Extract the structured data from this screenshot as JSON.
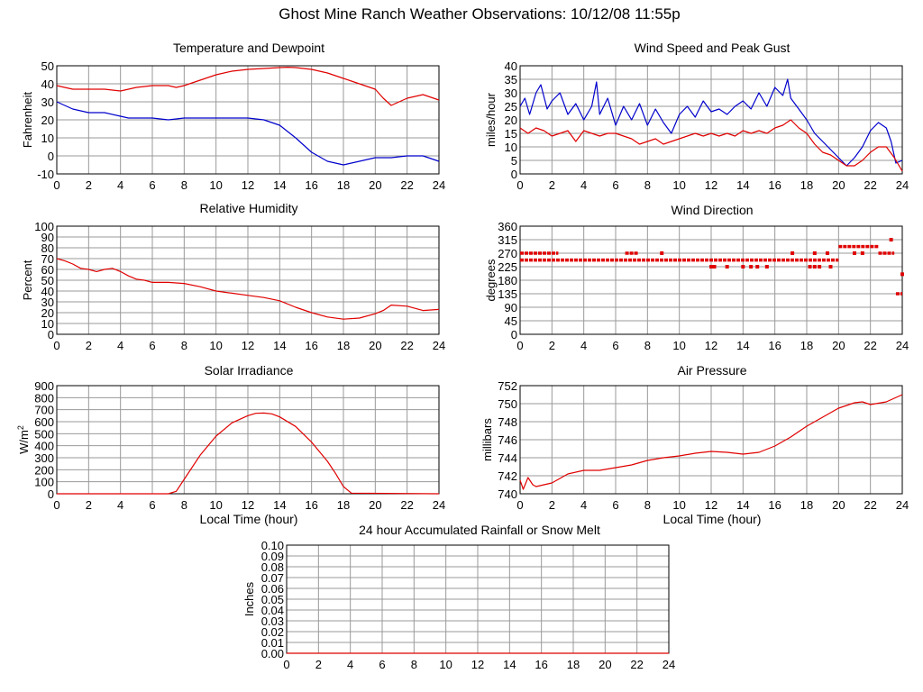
{
  "page": {
    "title": "Ghost Mine Ranch Weather Observations: 10/12/08 11:55p"
  },
  "colors": {
    "red": "#e00000",
    "blue": "#0000cc",
    "grid": "#999999",
    "axis": "#000000"
  },
  "chart_data": [
    {
      "id": "temperature",
      "type": "line",
      "title": "Temperature and Dewpoint",
      "xlabel": "",
      "ylabel": "Fahrenheit",
      "xlim": [
        0,
        24
      ],
      "ylim": [
        -10,
        50
      ],
      "xticks": [
        0,
        2,
        4,
        6,
        8,
        10,
        12,
        14,
        16,
        18,
        20,
        22,
        24
      ],
      "yticks": [
        -10,
        0,
        10,
        20,
        30,
        40,
        50
      ],
      "ytick_labels": [
        "-10",
        "0",
        "10",
        "20",
        "30",
        "40",
        "50"
      ],
      "series": [
        {
          "name": "Temperature",
          "color": "red",
          "x": [
            0,
            0.5,
            1,
            2,
            3,
            4,
            4.5,
            5,
            6,
            7,
            7.5,
            8,
            9,
            10,
            11,
            12,
            13,
            14,
            14.5,
            15,
            16,
            17,
            18,
            19,
            20,
            20.5,
            21,
            22,
            23,
            24
          ],
          "y": [
            39,
            38,
            37,
            37,
            37,
            36,
            37,
            38,
            39,
            39,
            38,
            39,
            42,
            45,
            47,
            48,
            48.5,
            49,
            49.2,
            49,
            48,
            46,
            43,
            40,
            37,
            32,
            28,
            32,
            34,
            31
          ]
        },
        {
          "name": "Dewpoint",
          "color": "blue",
          "x": [
            0,
            0.5,
            1,
            2,
            3,
            4,
            4.5,
            5,
            6,
            7,
            8,
            9,
            10,
            11,
            12,
            13,
            14,
            15,
            16,
            17,
            18,
            18.5,
            19,
            20,
            21,
            22,
            23,
            24
          ],
          "y": [
            30,
            28,
            26,
            24,
            24,
            22,
            21,
            21,
            21,
            20,
            21,
            21,
            21,
            21,
            21,
            20,
            17,
            10,
            2,
            -3,
            -5,
            -4,
            -3,
            -1,
            -1,
            0,
            0,
            -3
          ]
        }
      ]
    },
    {
      "id": "wind-speed",
      "type": "line",
      "title": "Wind Speed and Peak Gust",
      "xlabel": "",
      "ylabel": "miles/hour",
      "xlim": [
        0,
        24
      ],
      "ylim": [
        0,
        40
      ],
      "xticks": [
        0,
        2,
        4,
        6,
        8,
        10,
        12,
        14,
        16,
        18,
        20,
        22,
        24
      ],
      "yticks": [
        0,
        5,
        10,
        15,
        20,
        25,
        30,
        35,
        40
      ],
      "ytick_labels": [
        "0",
        "5",
        "10",
        "15",
        "20",
        "25",
        "30",
        "35",
        "40"
      ],
      "series": [
        {
          "name": "Peak Gust",
          "color": "blue",
          "x": [
            0,
            0.3,
            0.6,
            1,
            1.3,
            1.7,
            2,
            2.5,
            3,
            3.5,
            4,
            4.5,
            4.8,
            5,
            5.5,
            6,
            6.5,
            7,
            7.5,
            8,
            8.5,
            9,
            9.5,
            10,
            10.5,
            11,
            11.5,
            12,
            12.5,
            13,
            13.5,
            14,
            14.5,
            15,
            15.5,
            16,
            16.5,
            16.8,
            17,
            17.5,
            18,
            18.5,
            19,
            19.5,
            20,
            20.5,
            21,
            21.5,
            22,
            22.5,
            23,
            23.3,
            23.6,
            24
          ],
          "y": [
            25,
            28,
            22,
            30,
            33,
            24,
            27,
            30,
            22,
            26,
            20,
            25,
            34,
            22,
            28,
            18,
            25,
            20,
            26,
            18,
            24,
            19,
            15,
            22,
            25,
            21,
            27,
            23,
            24,
            22,
            25,
            27,
            24,
            30,
            25,
            32,
            29,
            35,
            28,
            24,
            20,
            15,
            12,
            9,
            6,
            3,
            6,
            10,
            16,
            19,
            17,
            12,
            4,
            5
          ]
        },
        {
          "name": "Wind Speed",
          "color": "red",
          "x": [
            0,
            0.5,
            1,
            1.5,
            2,
            2.5,
            3,
            3.5,
            4,
            4.5,
            5,
            5.5,
            6,
            6.5,
            7,
            7.5,
            8,
            8.5,
            9,
            9.5,
            10,
            10.5,
            11,
            11.5,
            12,
            12.5,
            13,
            13.5,
            14,
            14.5,
            15,
            15.5,
            16,
            16.5,
            17,
            17.5,
            18,
            18.5,
            19,
            19.5,
            20,
            20.5,
            21,
            21.5,
            22,
            22.5,
            23,
            23.5,
            24
          ],
          "y": [
            17,
            15,
            17,
            16,
            14,
            15,
            16,
            12,
            16,
            15,
            14,
            15,
            15,
            14,
            13,
            11,
            12,
            13,
            11,
            12,
            13,
            14,
            15,
            14,
            15,
            14,
            15,
            14,
            16,
            15,
            16,
            15,
            17,
            18,
            20,
            17,
            15,
            11,
            8,
            7,
            5,
            3,
            3,
            5,
            8,
            10,
            10,
            6,
            1
          ]
        }
      ]
    },
    {
      "id": "humidity",
      "type": "line",
      "title": "Relative Humidity",
      "xlabel": "",
      "ylabel": "Percent",
      "xlim": [
        0,
        24
      ],
      "ylim": [
        0,
        100
      ],
      "xticks": [
        0,
        2,
        4,
        6,
        8,
        10,
        12,
        14,
        16,
        18,
        20,
        22,
        24
      ],
      "yticks": [
        0,
        10,
        20,
        30,
        40,
        50,
        60,
        70,
        80,
        90,
        100
      ],
      "ytick_labels": [
        "0",
        "10",
        "20",
        "30",
        "40",
        "50",
        "60",
        "70",
        "80",
        "90",
        "100"
      ],
      "series": [
        {
          "name": "Relative Humidity",
          "color": "red",
          "x": [
            0,
            0.5,
            1,
            1.5,
            2,
            2.5,
            3,
            3.5,
            4,
            4.5,
            5,
            5.5,
            6,
            7,
            8,
            9,
            10,
            11,
            12,
            13,
            14,
            15,
            16,
            17,
            18,
            19,
            20,
            20.5,
            21,
            22,
            23,
            24
          ],
          "y": [
            70,
            68,
            65,
            61,
            60,
            58,
            60,
            61,
            58,
            54,
            51,
            50,
            48,
            48,
            47,
            44,
            40,
            38,
            36,
            34,
            31,
            25,
            20,
            16,
            14,
            15,
            19,
            22,
            27,
            26,
            22,
            23
          ]
        }
      ]
    },
    {
      "id": "wind-direction",
      "type": "scatter",
      "title": "Wind Direction",
      "xlabel": "",
      "ylabel": "degrees",
      "xlim": [
        0,
        24
      ],
      "ylim": [
        0,
        360
      ],
      "xticks": [
        0,
        2,
        4,
        6,
        8,
        10,
        12,
        14,
        16,
        18,
        20,
        22,
        24
      ],
      "yticks": [
        0,
        45,
        90,
        135,
        180,
        225,
        270,
        315,
        360
      ],
      "ytick_labels": [
        "0",
        "45",
        "90",
        "135",
        "180",
        "225",
        "270",
        "315",
        "360"
      ],
      "series": [
        {
          "name": "Wind Direction",
          "color": "red",
          "segments": [
            {
              "x0": 0,
              "x1": 20,
              "y": 247
            },
            {
              "x0": 0,
              "x1": 2.4,
              "y": 270
            },
            {
              "x0": 6.6,
              "x1": 7.4,
              "y": 270
            },
            {
              "x0": 20,
              "x1": 22.5,
              "y": 292
            },
            {
              "x0": 22.5,
              "x1": 23.5,
              "y": 270
            },
            {
              "x0": 23.6,
              "x1": 24,
              "y": 135
            }
          ],
          "points": [
            {
              "x": 8.9,
              "y": 270
            },
            {
              "x": 12.0,
              "y": 225
            },
            {
              "x": 12.2,
              "y": 225
            },
            {
              "x": 13.0,
              "y": 225
            },
            {
              "x": 14.0,
              "y": 225
            },
            {
              "x": 14.5,
              "y": 225
            },
            {
              "x": 14.9,
              "y": 225
            },
            {
              "x": 15.5,
              "y": 225
            },
            {
              "x": 17.1,
              "y": 270
            },
            {
              "x": 18.2,
              "y": 225
            },
            {
              "x": 18.5,
              "y": 225
            },
            {
              "x": 18.8,
              "y": 225
            },
            {
              "x": 18.5,
              "y": 270
            },
            {
              "x": 19.3,
              "y": 270
            },
            {
              "x": 19.5,
              "y": 225
            },
            {
              "x": 21.0,
              "y": 270
            },
            {
              "x": 21.5,
              "y": 270
            },
            {
              "x": 23.3,
              "y": 315
            },
            {
              "x": 24.0,
              "y": 200
            }
          ]
        }
      ]
    },
    {
      "id": "solar",
      "type": "line",
      "title": "Solar Irradiance",
      "xlabel": "Local Time (hour)",
      "ylabel": "W/m",
      "ylabel_sup": "2",
      "xlim": [
        0,
        24
      ],
      "ylim": [
        0,
        900
      ],
      "xticks": [
        0,
        2,
        4,
        6,
        8,
        10,
        12,
        14,
        16,
        18,
        20,
        22,
        24
      ],
      "yticks": [
        0,
        100,
        200,
        300,
        400,
        500,
        600,
        700,
        800,
        900
      ],
      "ytick_labels": [
        "0",
        "100",
        "200",
        "300",
        "400",
        "500",
        "600",
        "700",
        "800",
        "900"
      ],
      "series": [
        {
          "name": "Solar Irradiance",
          "color": "red",
          "x": [
            0,
            7,
            7.5,
            8,
            9,
            10,
            11,
            12,
            12.5,
            13,
            13.5,
            14,
            15,
            16,
            17,
            17.5,
            18,
            18.5,
            24
          ],
          "y": [
            0,
            0,
            20,
            120,
            320,
            480,
            590,
            650,
            670,
            672,
            665,
            640,
            560,
            430,
            270,
            170,
            60,
            5,
            0
          ]
        }
      ]
    },
    {
      "id": "pressure",
      "type": "line",
      "title": "Air Pressure",
      "xlabel": "Local Time (hour)",
      "ylabel": "millibars",
      "xlim": [
        0,
        24
      ],
      "ylim": [
        740,
        752
      ],
      "xticks": [
        0,
        2,
        4,
        6,
        8,
        10,
        12,
        14,
        16,
        18,
        20,
        22,
        24
      ],
      "yticks": [
        740,
        742,
        744,
        746,
        748,
        750,
        752
      ],
      "ytick_labels": [
        "740",
        "742",
        "744",
        "746",
        "748",
        "750",
        "752"
      ],
      "series": [
        {
          "name": "Air Pressure",
          "color": "red",
          "x": [
            0,
            0.2,
            0.5,
            0.8,
            1,
            2,
            3,
            4,
            5,
            6,
            7,
            8,
            9,
            10,
            11,
            12,
            13,
            14,
            15,
            16,
            17,
            18,
            19,
            20,
            21,
            21.5,
            22,
            23,
            24
          ],
          "y": [
            741.5,
            740.5,
            741.8,
            741,
            740.8,
            741.2,
            742.2,
            742.6,
            742.6,
            742.9,
            743.2,
            743.7,
            744,
            744.2,
            744.5,
            744.7,
            744.6,
            744.4,
            744.6,
            745.3,
            746.3,
            747.5,
            748.5,
            749.5,
            750.1,
            750.2,
            749.9,
            750.2,
            751
          ]
        }
      ]
    },
    {
      "id": "rainfall",
      "type": "line",
      "title": "24 hour Accumulated Rainfall or Snow Melt",
      "xlabel": "",
      "ylabel": "Inches",
      "xlim": [
        0,
        24
      ],
      "ylim": [
        0,
        0.1
      ],
      "xticks": [
        0,
        2,
        4,
        6,
        8,
        10,
        12,
        14,
        16,
        18,
        20,
        22,
        24
      ],
      "yticks": [
        0,
        0.01,
        0.02,
        0.03,
        0.04,
        0.05,
        0.06,
        0.07,
        0.08,
        0.09,
        0.1
      ],
      "ytick_labels": [
        "0.00",
        "0.01",
        "0.02",
        "0.03",
        "0.04",
        "0.05",
        "0.06",
        "0.07",
        "0.08",
        "0.09",
        "0.10"
      ],
      "series": [
        {
          "name": "Rainfall",
          "color": "red",
          "x": [
            0,
            24
          ],
          "y": [
            0,
            0
          ]
        }
      ]
    }
  ]
}
